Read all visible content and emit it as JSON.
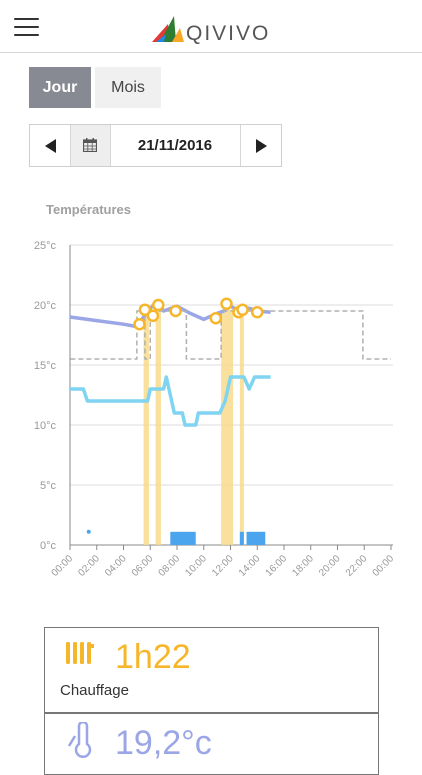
{
  "header": {
    "logo_text": "QIVIVO",
    "menu_icon": "hamburger-icon",
    "logo_icon": "qivivo-logo-icon"
  },
  "tabs": [
    {
      "label": "Jour",
      "active": true
    },
    {
      "label": "Mois",
      "active": false
    }
  ],
  "date_nav": {
    "date": "21/11/2016",
    "prev_icon": "arrow-left-icon",
    "calendar_icon": "calendar-icon",
    "next_icon": "arrow-right-icon"
  },
  "chart_title": "Températures",
  "chart_data": {
    "type": "line",
    "ylim": [
      0,
      25
    ],
    "y_ticks": [
      "0°c",
      "5°c",
      "10°c",
      "15°c",
      "20°c",
      "25°c"
    ],
    "x_ticks": [
      "00:00",
      "02:00",
      "04:00",
      "06:00",
      "08:00",
      "10:00",
      "12:00",
      "14:00",
      "16:00",
      "18:00",
      "20:00",
      "22:00",
      "00:00"
    ],
    "grid": true,
    "series": [
      {
        "type": "line",
        "color": "#9aa6e6",
        "x": [
          0,
          2,
          4,
          5.0,
          5.5,
          6.0,
          6.5,
          7.0,
          8.0,
          9.0,
          10.0,
          11.0,
          11.5,
          12.0,
          12.5,
          13.0,
          13.5,
          14.0,
          15.0
        ],
        "values": [
          19.0,
          18.7,
          18.4,
          18.2,
          19.0,
          19.7,
          20.3,
          19.5,
          19.9,
          19.3,
          18.8,
          19.3,
          19.5,
          19.9,
          19.6,
          19.8,
          19.7,
          19.5,
          19.4
        ]
      },
      {
        "type": "line",
        "color": "#7fd4f2",
        "x": [
          0,
          1,
          1.3,
          2,
          4,
          5.8,
          6.0,
          7.0,
          7.2,
          7.6,
          7.8,
          8.4,
          8.6,
          9.4,
          9.6,
          10.4,
          10.7,
          11.2,
          11.6,
          12.0,
          12.6,
          13.0,
          13.4,
          13.8,
          15.0
        ],
        "values": [
          13,
          13,
          12,
          12,
          12,
          12,
          13,
          13,
          14,
          12,
          11,
          11,
          10,
          10,
          11,
          11,
          11,
          11,
          12,
          14,
          14,
          14,
          13,
          14,
          14
        ]
      },
      {
        "type": "step",
        "color": "#b0b0b0",
        "style": "dashed",
        "x": [
          0,
          0,
          5.0,
          5.0,
          5.6,
          5.6,
          6.0,
          6.0,
          8.7,
          8.7,
          11.3,
          11.3,
          15.3,
          15.3,
          21.9,
          21.9,
          24.0
        ],
        "values": [
          16.8,
          15.5,
          15.5,
          19.5,
          19.5,
          15.5,
          15.5,
          19.5,
          19.5,
          15.5,
          15.5,
          19.5,
          19.5,
          19.5,
          19.5,
          15.5,
          15.5
        ]
      }
    ],
    "markers": {
      "color": "#f7b62a",
      "x": [
        5.2,
        5.6,
        6.2,
        6.6,
        7.9,
        10.9,
        11.7,
        12.6,
        12.9,
        14.0
      ],
      "values": [
        18.4,
        19.6,
        19.1,
        20.0,
        19.5,
        18.9,
        20.1,
        19.4,
        19.6,
        19.4
      ]
    },
    "orange_bands": {
      "color": "#f8dc8c",
      "ranges": [
        [
          5.5,
          5.9
        ],
        [
          6.4,
          6.8
        ],
        [
          11.3,
          12.2
        ],
        [
          12.7,
          13.0
        ]
      ]
    },
    "heating_bars": {
      "color": "#4aa5ee",
      "ranges": [
        [
          7.5,
          9.4
        ],
        [
          12.7,
          13.0
        ],
        [
          13.2,
          14.6
        ]
      ],
      "value": 1.1
    },
    "point": {
      "color": "#4aa5ee",
      "x": 1.4,
      "value": 1.1
    }
  },
  "cards": {
    "heating": {
      "value": "1h22",
      "label": "Chauffage",
      "icon": "radiator-icon"
    },
    "temperature": {
      "value": "19,2°c",
      "icon": "thermometer-icon"
    }
  }
}
